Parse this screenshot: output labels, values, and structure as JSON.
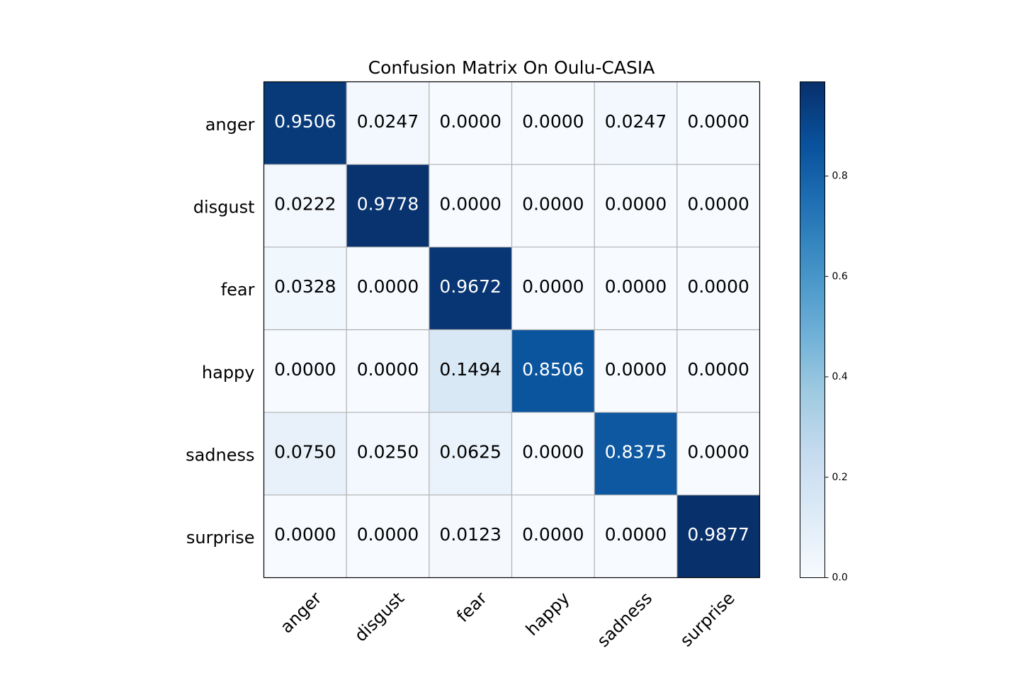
{
  "chart_data": {
    "type": "heatmap",
    "title": "Confusion Matrix On Oulu-CASIA",
    "xlabel": "",
    "ylabel": "",
    "x_categories": [
      "anger",
      "disgust",
      "fear",
      "happy",
      "sadness",
      "surprise"
    ],
    "y_categories": [
      "anger",
      "disgust",
      "fear",
      "happy",
      "sadness",
      "surprise"
    ],
    "values": [
      [
        0.9506,
        0.0247,
        0.0,
        0.0,
        0.0247,
        0.0
      ],
      [
        0.0222,
        0.9778,
        0.0,
        0.0,
        0.0,
        0.0
      ],
      [
        0.0328,
        0.0,
        0.9672,
        0.0,
        0.0,
        0.0
      ],
      [
        0.0,
        0.0,
        0.1494,
        0.8506,
        0.0,
        0.0
      ],
      [
        0.075,
        0.025,
        0.0625,
        0.0,
        0.8375,
        0.0
      ],
      [
        0.0,
        0.0,
        0.0123,
        0.0,
        0.0,
        0.9877
      ]
    ],
    "colormap": "Blues",
    "vmin": 0.0,
    "vmax": 0.9877,
    "colorbar_ticks": [
      "0.0",
      "0.2",
      "0.4",
      "0.6",
      "0.8"
    ],
    "grid": true
  },
  "colors": {
    "light": "#f7fbff",
    "dark": "#08306b",
    "grid": "#b0b0b0",
    "text_light": "#ffffff",
    "text_dark": "#000000"
  }
}
